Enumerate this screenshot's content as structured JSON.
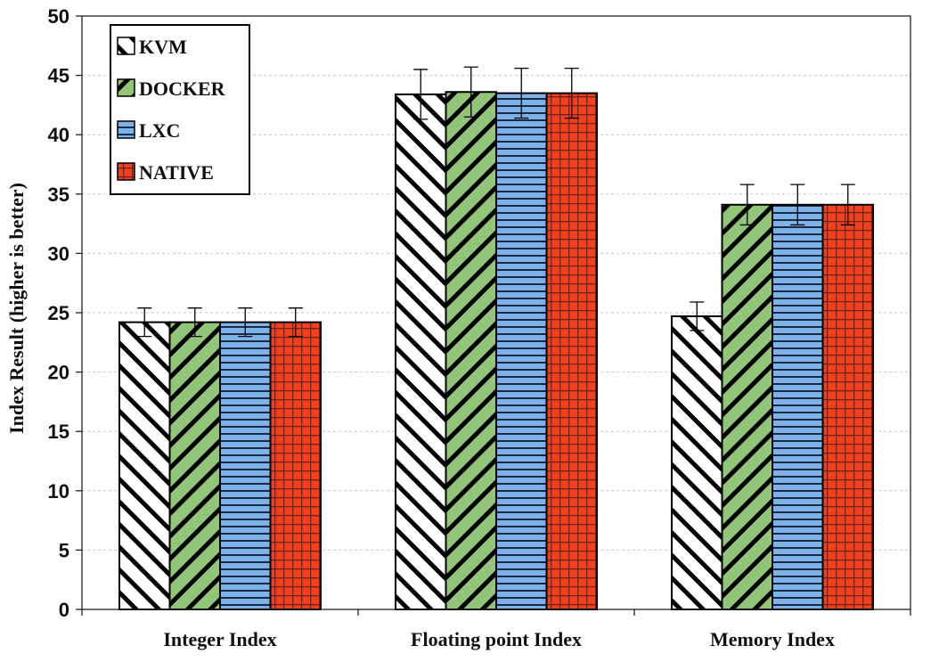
{
  "chart_data": {
    "type": "bar",
    "title": "",
    "xlabel": "",
    "ylabel": "Index Result (higher is better)",
    "ylim": [
      0,
      50
    ],
    "yticks": [
      0,
      5,
      10,
      15,
      20,
      25,
      30,
      35,
      40,
      45,
      50
    ],
    "grid": true,
    "legend_position": "top-left",
    "categories": [
      "Integer Index",
      "Floating point Index",
      "Memory Index"
    ],
    "series": [
      {
        "name": "KVM",
        "pattern": "diagonal-up-hatch",
        "color": "#ffffff",
        "values": [
          24.2,
          43.4,
          24.7
        ],
        "errors": [
          1.2,
          2.1,
          1.2
        ]
      },
      {
        "name": "DOCKER",
        "pattern": "diagonal-down-hatch",
        "color": "#92c47a",
        "values": [
          24.2,
          43.6,
          34.1
        ],
        "errors": [
          1.2,
          2.1,
          1.7
        ]
      },
      {
        "name": "LXC",
        "pattern": "horizontal-stripes",
        "color": "#7fb2e6",
        "values": [
          24.2,
          43.5,
          34.1
        ],
        "errors": [
          1.2,
          2.1,
          1.7
        ]
      },
      {
        "name": "NATIVE",
        "pattern": "grid-dots",
        "color": "#f0401e",
        "values": [
          24.2,
          43.5,
          34.1
        ],
        "errors": [
          1.2,
          2.1,
          1.7
        ]
      }
    ]
  }
}
